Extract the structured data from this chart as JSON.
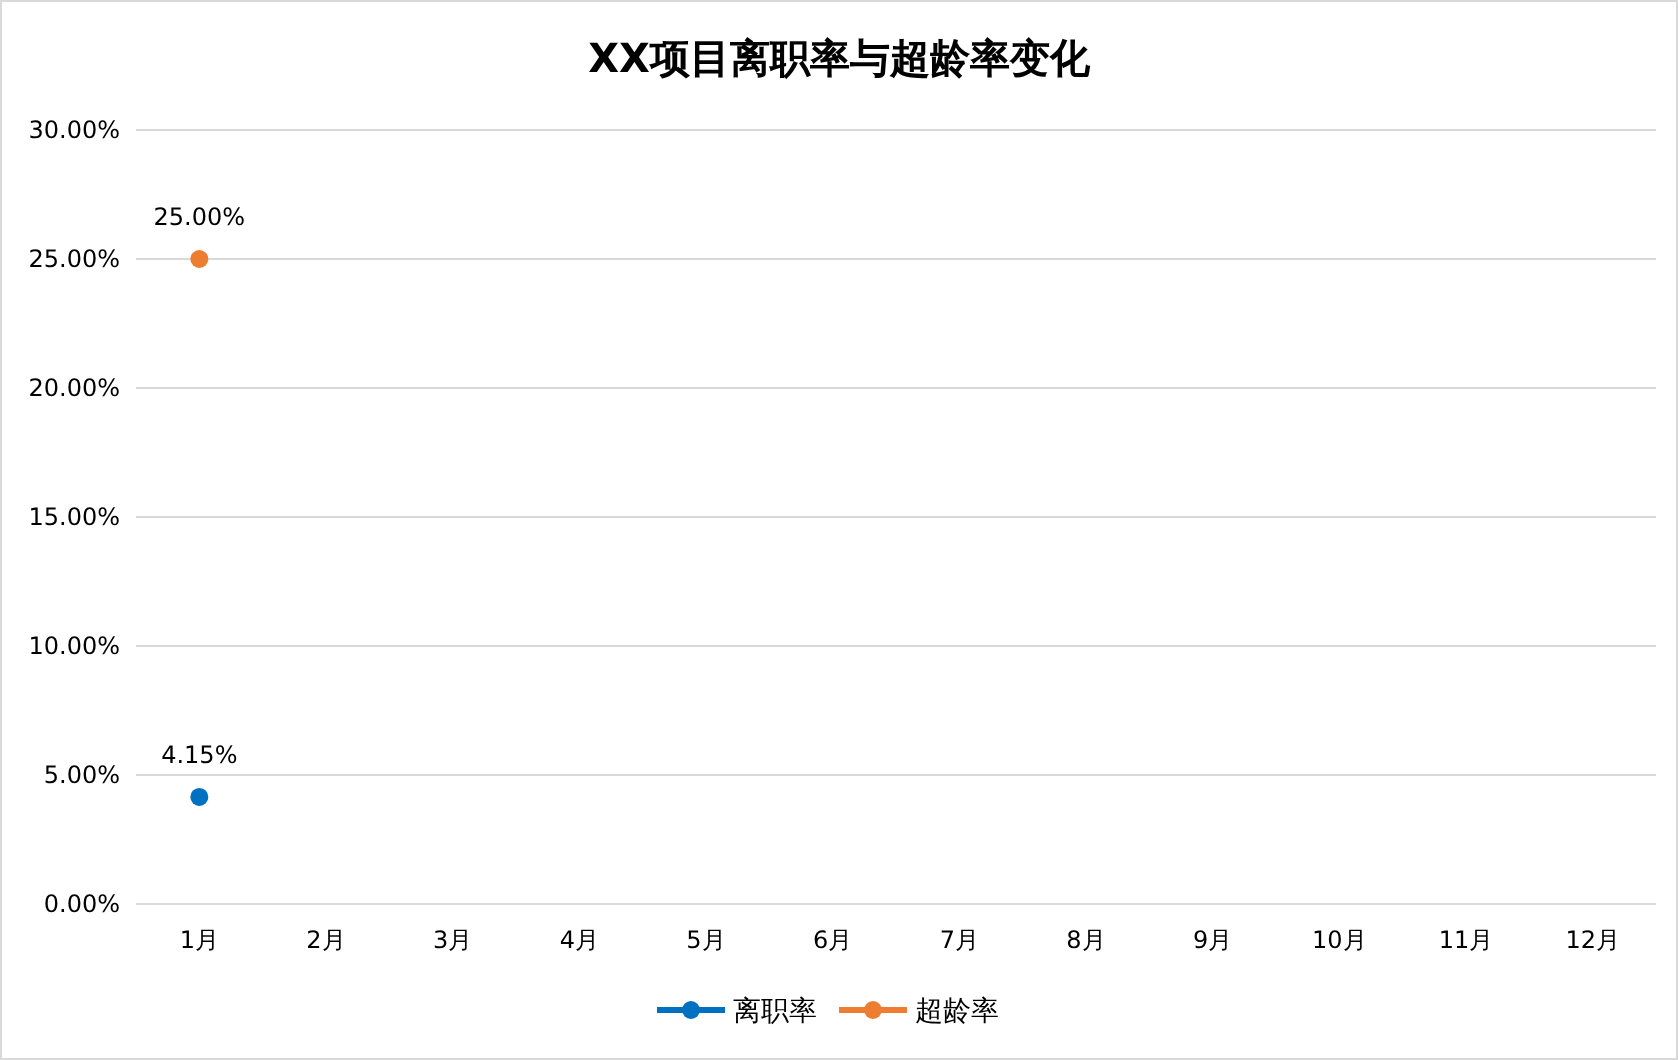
{
  "chart_data": {
    "type": "line",
    "title": "XX项目离职率与超龄率变化",
    "categories": [
      "1月",
      "2月",
      "3月",
      "4月",
      "5月",
      "6月",
      "7月",
      "8月",
      "9月",
      "10月",
      "11月",
      "12月"
    ],
    "series": [
      {
        "name": "离职率",
        "color": "#0070c0",
        "values": [
          4.15,
          null,
          null,
          null,
          null,
          null,
          null,
          null,
          null,
          null,
          null,
          null
        ],
        "value_labels": [
          "4.15%",
          null,
          null,
          null,
          null,
          null,
          null,
          null,
          null,
          null,
          null,
          null
        ]
      },
      {
        "name": "超龄率",
        "color": "#ed7d31",
        "values": [
          25,
          null,
          null,
          null,
          null,
          null,
          null,
          null,
          null,
          null,
          null,
          null
        ],
        "value_labels": [
          "25.00%",
          null,
          null,
          null,
          null,
          null,
          null,
          null,
          null,
          null,
          null,
          null
        ]
      }
    ],
    "ylim": [
      0,
      30
    ],
    "yticks": [
      {
        "value": 0,
        "label": "0.00%"
      },
      {
        "value": 5,
        "label": "5.00%"
      },
      {
        "value": 10,
        "label": "10.00%"
      },
      {
        "value": 15,
        "label": "15.00%"
      },
      {
        "value": 20,
        "label": "20.00%"
      },
      {
        "value": 25,
        "label": "25.00%"
      },
      {
        "value": 30,
        "label": "30.00%"
      }
    ],
    "grid": "y",
    "legend": "bottom",
    "marker": "circle",
    "line_style": "solid"
  }
}
